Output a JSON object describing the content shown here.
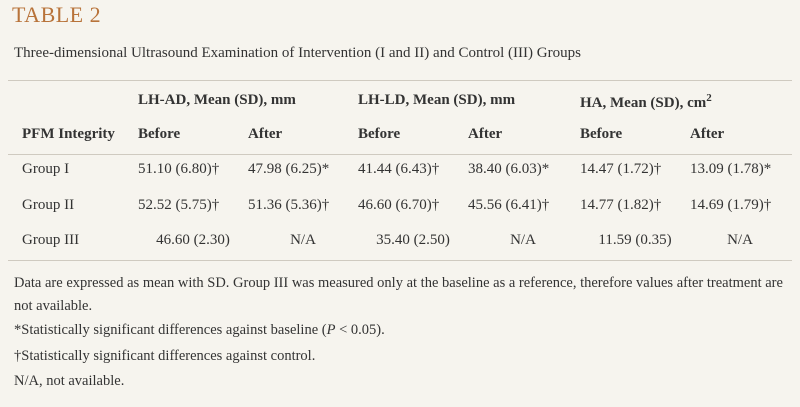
{
  "title": "TABLE 2",
  "caption": "Three-dimensional Ultrasound Examination of Intervention (I and II) and Control (III) Groups",
  "table": {
    "header_groups": [
      {
        "text": "LH-AD, Mean (SD), mm"
      },
      {
        "text": "LH-LD, Mean (SD), mm"
      },
      {
        "text": "HA, Mean (SD), cm",
        "sup": "2"
      }
    ],
    "columns": [
      "PFM Integrity",
      "Before",
      "After",
      "Before",
      "After",
      "Before",
      "After"
    ],
    "rows": [
      [
        "Group I",
        "51.10 (6.80)†",
        "47.98 (6.25)*",
        "41.44 (6.43)†",
        "38.40 (6.03)*",
        "14.47 (1.72)†",
        "13.09 (1.78)*"
      ],
      [
        "Group II",
        "52.52 (5.75)†",
        "51.36 (5.36)†",
        "46.60 (6.70)†",
        "45.56 (6.41)†",
        "14.77 (1.82)†",
        "14.69 (1.79)†"
      ],
      [
        "Group III",
        "46.60 (2.30)",
        "N/A",
        "35.40 (2.50)",
        "N/A",
        "11.59 (0.35)",
        "N/A"
      ]
    ]
  },
  "notes": [
    "Data are expressed as mean with SD. Group III was measured only at the baseline as a reference, therefore values after treatment are not available.",
    {
      "before": "*Statistically significant differences against baseline (",
      "italic": "P",
      "after": " < 0.05)."
    },
    "†Statistically significant differences against control.",
    "N/A, not available."
  ]
}
